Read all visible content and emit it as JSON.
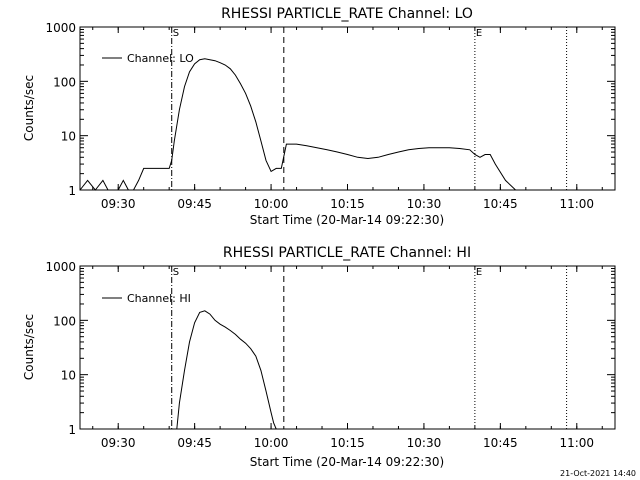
{
  "chart_data": [
    {
      "type": "line",
      "title": "RHESSI PARTICLE_RATE Channel: LO",
      "xlabel": "Start Time (20-Mar-14 09:22:30)",
      "ylabel": "Counts/sec",
      "x_ticks": [
        "09:30",
        "09:45",
        "10:00",
        "10:15",
        "10:30",
        "10:45",
        "11:00"
      ],
      "y_ticks": [
        "1",
        "10",
        "100",
        "1000"
      ],
      "y_scale": "log",
      "xlim": [
        "09:22:30",
        "11:07:30"
      ],
      "ylim": [
        1,
        1000
      ],
      "legend": {
        "position": "top-left",
        "entries": [
          "Channel: LO"
        ]
      },
      "markers": [
        {
          "time": "09:40:30",
          "style": "dash-dot",
          "label": "S"
        },
        {
          "time": "10:02:30",
          "style": "dashed",
          "label": ""
        },
        {
          "time": "10:40:00",
          "style": "dotted",
          "label": "E"
        },
        {
          "time": "10:58:00",
          "style": "dotted",
          "label": ""
        }
      ],
      "series": [
        {
          "name": "Channel: LO",
          "x": [
            "09:22:30",
            "09:24:00",
            "09:25:30",
            "09:27:00",
            "09:28:00",
            "09:30:00",
            "09:31:00",
            "09:32:00",
            "09:33:00",
            "09:34:00",
            "09:35:00",
            "09:36:00",
            "09:37:00",
            "09:38:00",
            "09:39:00",
            "09:40:00",
            "09:40:30",
            "09:41:00",
            "09:42:00",
            "09:43:00",
            "09:44:00",
            "09:45:00",
            "09:46:00",
            "09:47:00",
            "09:48:00",
            "09:49:00",
            "09:50:00",
            "09:51:00",
            "09:52:00",
            "09:53:00",
            "09:54:00",
            "09:55:00",
            "09:56:00",
            "09:57:00",
            "09:58:00",
            "09:59:00",
            "10:00:00",
            "10:01:00",
            "10:02:00",
            "10:03:00",
            "10:04:00",
            "10:05:00",
            "10:07:00",
            "10:09:00",
            "10:11:00",
            "10:13:00",
            "10:15:00",
            "10:17:00",
            "10:19:00",
            "10:21:00",
            "10:23:00",
            "10:25:00",
            "10:27:00",
            "10:29:00",
            "10:31:00",
            "10:33:00",
            "10:35:00",
            "10:37:00",
            "10:39:00",
            "10:40:00",
            "10:41:00",
            "10:42:00",
            "10:43:00",
            "10:44:00",
            "10:46:00",
            "10:48:00",
            "10:50:00",
            "10:52:00",
            "10:54:00",
            "10:56:00",
            "10:58:00"
          ],
          "y": [
            1,
            1.5,
            1,
            1.5,
            1,
            1,
            1.5,
            1,
            1,
            1.5,
            2.5,
            2.5,
            2.5,
            2.5,
            2.5,
            2.5,
            3.5,
            8,
            30,
            80,
            150,
            210,
            250,
            260,
            250,
            240,
            220,
            200,
            170,
            130,
            90,
            60,
            35,
            18,
            8,
            3.5,
            2.2,
            2.5,
            2.5,
            7,
            7,
            7,
            6.5,
            6,
            5.5,
            5,
            4.5,
            4,
            3.8,
            4,
            4.5,
            5,
            5.5,
            5.8,
            6,
            6,
            6,
            5.8,
            5.5,
            4.5,
            4,
            4.5,
            4.5,
            3,
            1.5,
            1,
            1,
            1,
            1,
            1,
            1
          ]
        }
      ]
    },
    {
      "type": "line",
      "title": "RHESSI PARTICLE_RATE Channel: HI",
      "xlabel": "Start Time (20-Mar-14 09:22:30)",
      "ylabel": "Counts/sec",
      "x_ticks": [
        "09:30",
        "09:45",
        "10:00",
        "10:15",
        "10:30",
        "10:45",
        "11:00"
      ],
      "y_ticks": [
        "1",
        "10",
        "100",
        "1000"
      ],
      "y_scale": "log",
      "xlim": [
        "09:22:30",
        "11:07:30"
      ],
      "ylim": [
        1,
        1000
      ],
      "legend": {
        "position": "top-left",
        "entries": [
          "Channel: HI"
        ]
      },
      "markers": [
        {
          "time": "09:40:30",
          "style": "dash-dot",
          "label": "S"
        },
        {
          "time": "10:02:30",
          "style": "dashed",
          "label": ""
        },
        {
          "time": "10:40:00",
          "style": "dotted",
          "label": "E"
        },
        {
          "time": "10:58:00",
          "style": "dotted",
          "label": ""
        }
      ],
      "series": [
        {
          "name": "Channel: HI",
          "x": [
            "09:41:30",
            "09:42:00",
            "09:43:00",
            "09:44:00",
            "09:45:00",
            "09:46:00",
            "09:47:00",
            "09:48:00",
            "09:49:00",
            "09:50:00",
            "09:51:00",
            "09:52:00",
            "09:53:00",
            "09:54:00",
            "09:55:00",
            "09:56:00",
            "09:57:00",
            "09:58:00",
            "09:59:00",
            "10:00:00",
            "10:00:30",
            "10:01:00"
          ],
          "y": [
            1,
            3,
            12,
            40,
            90,
            140,
            150,
            130,
            100,
            85,
            75,
            65,
            55,
            45,
            38,
            30,
            22,
            12,
            5,
            2,
            1.3,
            1
          ]
        }
      ]
    }
  ],
  "footer": {
    "timestamp": "21-Oct-2021 14:40"
  }
}
